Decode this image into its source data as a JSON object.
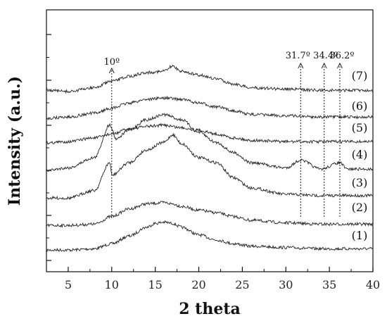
{
  "chart_data": {
    "type": "line",
    "title": "",
    "xlabel": "2 theta",
    "ylabel": "Intensity (a.u.)",
    "xlim": [
      2.5,
      40
    ],
    "x_ticks": [
      5,
      10,
      15,
      20,
      25,
      30,
      35,
      40
    ],
    "y_ticks_labeled": false,
    "grid": false,
    "legend": "none",
    "series": [
      {
        "name": "(1)",
        "x": [
          2.5,
          5,
          8,
          10,
          12,
          14,
          15,
          16,
          17,
          18,
          20,
          22,
          24,
          26,
          30,
          34,
          37,
          40
        ],
        "y": [
          0.01,
          0.01,
          0.02,
          0.06,
          0.12,
          0.19,
          0.22,
          0.23,
          0.22,
          0.19,
          0.13,
          0.09,
          0.06,
          0.04,
          0.03,
          0.02,
          0.02,
          0.02
        ]
      },
      {
        "name": "(2)",
        "x": [
          2.5,
          5,
          8,
          10,
          12,
          14,
          16,
          17,
          18,
          20,
          22,
          24,
          26,
          30,
          34,
          37,
          40
        ],
        "y": [
          0.01,
          0.01,
          0.02,
          0.08,
          0.14,
          0.18,
          0.19,
          0.18,
          0.16,
          0.13,
          0.11,
          0.08,
          0.05,
          0.03,
          0.02,
          0.02,
          0.02
        ]
      },
      {
        "name": "(3)",
        "x": [
          2.5,
          5,
          8,
          9.8,
          10,
          12,
          14,
          16,
          17,
          18,
          20,
          22,
          24,
          26,
          30,
          34,
          37,
          40
        ],
        "y": [
          0.02,
          0.02,
          0.08,
          0.3,
          0.2,
          0.3,
          0.4,
          0.46,
          0.52,
          0.45,
          0.34,
          0.3,
          0.18,
          0.1,
          0.05,
          0.04,
          0.04,
          0.04
        ]
      },
      {
        "name": "(4)",
        "x": [
          2.5,
          5,
          8,
          9.8,
          10.5,
          12,
          14,
          16,
          18,
          20,
          22,
          24,
          26,
          30,
          31.7,
          34,
          36.2,
          37,
          40
        ],
        "y": [
          0.0,
          0.02,
          0.1,
          0.36,
          0.25,
          0.32,
          0.4,
          0.44,
          0.4,
          0.3,
          0.22,
          0.14,
          0.06,
          0.02,
          0.08,
          0.01,
          0.06,
          0.01,
          0.01
        ]
      },
      {
        "name": "(5)",
        "x": [
          2.5,
          5,
          8,
          10,
          12,
          14,
          16,
          18,
          20,
          22,
          24,
          26,
          30,
          34,
          37,
          40
        ],
        "y": [
          0.0,
          0.01,
          0.04,
          0.07,
          0.11,
          0.13,
          0.14,
          0.12,
          0.1,
          0.07,
          0.04,
          0.02,
          0.01,
          0.01,
          0.01,
          0.01
        ]
      },
      {
        "name": "(6)",
        "x": [
          2.5,
          5,
          8,
          10,
          12,
          14,
          16,
          18,
          20,
          22,
          24,
          26,
          30,
          34,
          37,
          40
        ],
        "y": [
          0.0,
          0.01,
          0.04,
          0.08,
          0.12,
          0.15,
          0.16,
          0.15,
          0.12,
          0.09,
          0.06,
          0.03,
          0.02,
          0.01,
          0.01,
          0.01
        ]
      },
      {
        "name": "(7)",
        "x": [
          2.5,
          5,
          8,
          10,
          12,
          14,
          16,
          17,
          18,
          20,
          22,
          24,
          26,
          30,
          34,
          37,
          40
        ],
        "y": [
          0.01,
          0.0,
          0.03,
          0.08,
          0.12,
          0.15,
          0.16,
          0.2,
          0.16,
          0.13,
          0.1,
          0.06,
          0.03,
          0.02,
          0.01,
          0.01,
          0.01
        ]
      }
    ],
    "annotations": [
      {
        "label": "10º",
        "x": 10
      },
      {
        "label": "31.7º",
        "x": 31.7
      },
      {
        "label": "34.4º",
        "x": 34.4
      },
      {
        "label": "36.2º",
        "x": 36.2
      }
    ]
  }
}
